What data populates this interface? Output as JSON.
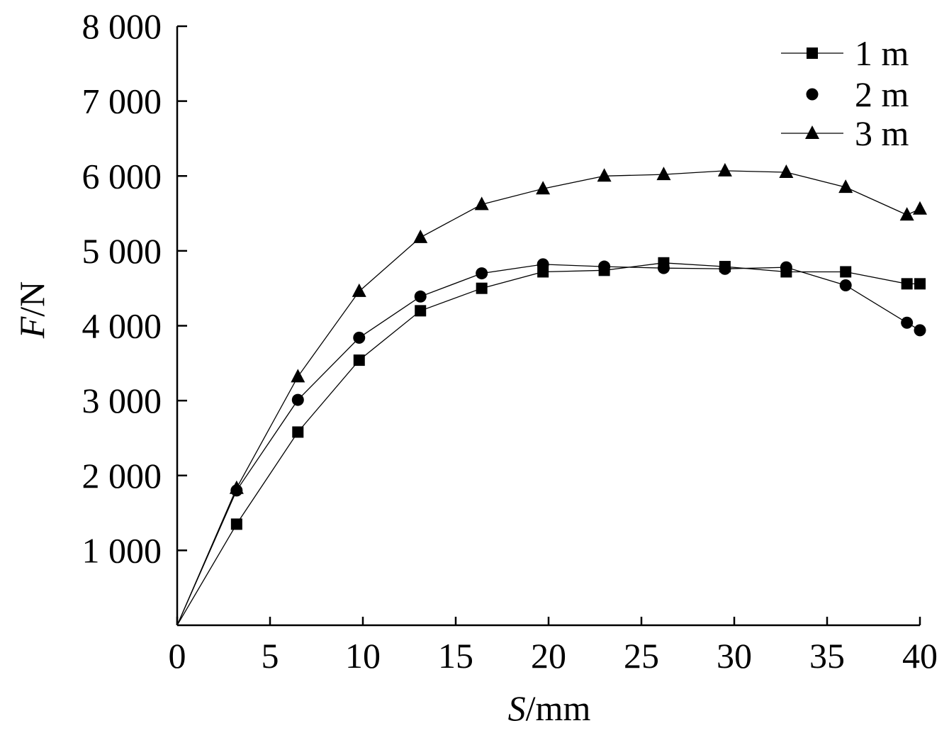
{
  "chart_data": {
    "type": "line",
    "xlabel_italic": "S",
    "xlabel_rest": "/mm",
    "ylabel_italic": "F",
    "ylabel_rest": "/N",
    "xlim": [
      0,
      40
    ],
    "ylim": [
      0,
      8000
    ],
    "x_ticks": [
      0,
      5,
      10,
      15,
      20,
      25,
      30,
      35,
      40
    ],
    "x_tick_labels": [
      "0",
      "5",
      "10",
      "15",
      "20",
      "25",
      "30",
      "35",
      "40"
    ],
    "y_ticks": [
      1000,
      2000,
      3000,
      4000,
      5000,
      6000,
      7000,
      8000
    ],
    "y_tick_labels": [
      "1 000",
      "2 000",
      "3 000",
      "4 000",
      "5 000",
      "6 000",
      "7 000",
      "8 000"
    ],
    "grid": false,
    "legend_position": "top-right",
    "series": [
      {
        "name": "1 m",
        "marker": "square",
        "points": [
          [
            0,
            0
          ],
          [
            3.2,
            1350
          ],
          [
            6.5,
            2580
          ],
          [
            9.8,
            3540
          ],
          [
            13.1,
            4200
          ],
          [
            16.4,
            4500
          ],
          [
            19.7,
            4720
          ],
          [
            23.0,
            4740
          ],
          [
            26.2,
            4840
          ],
          [
            29.5,
            4790
          ],
          [
            32.8,
            4720
          ],
          [
            36.0,
            4720
          ],
          [
            39.3,
            4560
          ],
          [
            40,
            4560
          ]
        ]
      },
      {
        "name": "2 m",
        "marker": "circle",
        "points": [
          [
            0,
            0
          ],
          [
            3.2,
            1800
          ],
          [
            6.5,
            3010
          ],
          [
            9.8,
            3840
          ],
          [
            13.1,
            4390
          ],
          [
            16.4,
            4700
          ],
          [
            19.7,
            4820
          ],
          [
            23.0,
            4790
          ],
          [
            26.2,
            4770
          ],
          [
            29.5,
            4760
          ],
          [
            32.8,
            4780
          ],
          [
            36.0,
            4540
          ],
          [
            39.3,
            4040
          ],
          [
            40,
            3940
          ]
        ]
      },
      {
        "name": "3 m",
        "marker": "triangle",
        "points": [
          [
            0,
            0
          ],
          [
            3.2,
            1830
          ],
          [
            6.5,
            3320
          ],
          [
            9.8,
            4460
          ],
          [
            13.1,
            5180
          ],
          [
            16.4,
            5620
          ],
          [
            19.7,
            5830
          ],
          [
            23.0,
            6000
          ],
          [
            26.2,
            6020
          ],
          [
            29.5,
            6070
          ],
          [
            32.8,
            6050
          ],
          [
            36.0,
            5850
          ],
          [
            39.3,
            5480
          ],
          [
            40,
            5560
          ]
        ]
      }
    ]
  }
}
